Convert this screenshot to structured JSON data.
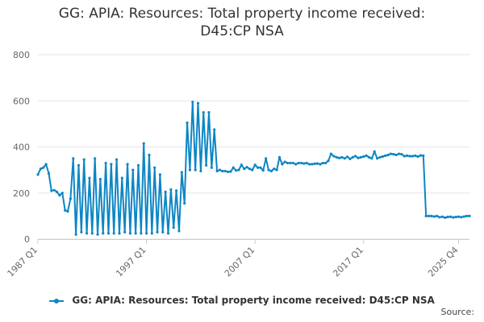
{
  "title_line1": "GG: APIA: Resources: Total property income received:",
  "title_line2": "D45:CP NSA",
  "source_label": "Source:",
  "colors": {
    "series": "#0d86c4",
    "grid": "#e6e6e6",
    "axis": "#cccccc",
    "tick_text": "#666666"
  },
  "chart_data": {
    "type": "line",
    "title": "GG: APIA: Resources: Total property income received: D45:CP NSA",
    "xlabel": "",
    "ylabel": "",
    "ylim": [
      0,
      800
    ],
    "yticks": [
      0,
      200,
      400,
      600,
      800
    ],
    "x_range": [
      "1987 Q1",
      "2025 Q4"
    ],
    "x_tick_labels": [
      "1987 Q1",
      "1997 Q1",
      "2007 Q1",
      "2017 Q1",
      "2025 Q4"
    ],
    "grid": true,
    "legend_position": "bottom",
    "series": [
      {
        "name": "GG: APIA: Resources: Total property income received: D45:CP NSA",
        "frequency": "quarterly",
        "start": "1987 Q1",
        "values": [
          280,
          305,
          310,
          325,
          285,
          210,
          212,
          205,
          190,
          200,
          125,
          120,
          175,
          350,
          20,
          320,
          30,
          345,
          25,
          265,
          25,
          350,
          20,
          260,
          25,
          330,
          25,
          325,
          25,
          345,
          25,
          265,
          30,
          325,
          25,
          300,
          25,
          320,
          25,
          415,
          25,
          365,
          25,
          310,
          30,
          280,
          30,
          205,
          25,
          215,
          50,
          210,
          35,
          290,
          155,
          505,
          300,
          595,
          300,
          590,
          295,
          550,
          320,
          550,
          310,
          475,
          295,
          300,
          295,
          295,
          292,
          293,
          310,
          298,
          300,
          322,
          305,
          312,
          305,
          300,
          322,
          310,
          310,
          298,
          350,
          300,
          295,
          305,
          300,
          355,
          325,
          335,
          330,
          330,
          330,
          325,
          330,
          330,
          328,
          330,
          325,
          325,
          327,
          328,
          325,
          330,
          330,
          340,
          370,
          360,
          355,
          352,
          355,
          350,
          357,
          348,
          355,
          360,
          352,
          355,
          358,
          362,
          355,
          350,
          380,
          350,
          355,
          358,
          362,
          365,
          370,
          368,
          365,
          370,
          368,
          360,
          362,
          360,
          360,
          362,
          358,
          363,
          362,
          100,
          100,
          100,
          98,
          100,
          95,
          97,
          93,
          96,
          97,
          94,
          96,
          97,
          95,
          98,
          100,
          100
        ]
      }
    ]
  }
}
